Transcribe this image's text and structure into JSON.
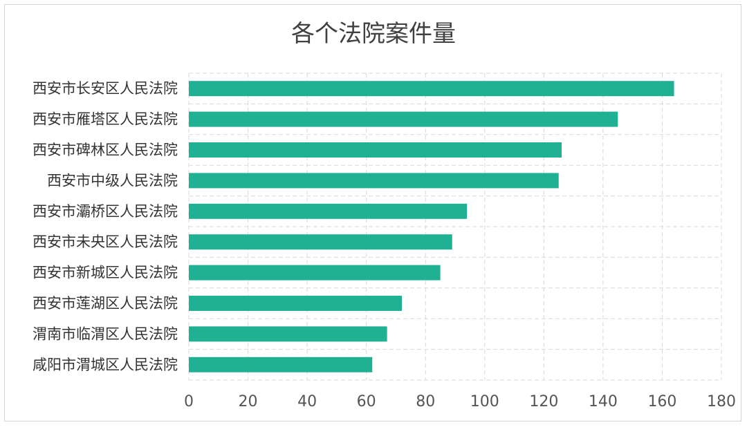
{
  "chart_data": {
    "type": "bar",
    "orientation": "horizontal",
    "title": "各个法院案件量",
    "xlabel": "",
    "ylabel": "",
    "categories": [
      "西安市长安区人民法院",
      "西安市雁塔区人民法院",
      "西安市碑林区人民法院",
      "西安市中级人民法院",
      "西安市灞桥区人民法院",
      "西安市未央区人民法院",
      "西安市新城区人民法院",
      "西安市莲湖区人民法院",
      "渭南市临渭区人民法院",
      "咸阳市渭城区人民法院"
    ],
    "values": [
      164,
      145,
      126,
      125,
      94,
      89,
      85,
      72,
      67,
      62
    ],
    "xlim": [
      0,
      180
    ],
    "xticks": [
      0,
      20,
      40,
      60,
      80,
      100,
      120,
      140,
      160,
      180
    ],
    "bar_color": "#20b192",
    "grid": true,
    "legend": "none"
  }
}
